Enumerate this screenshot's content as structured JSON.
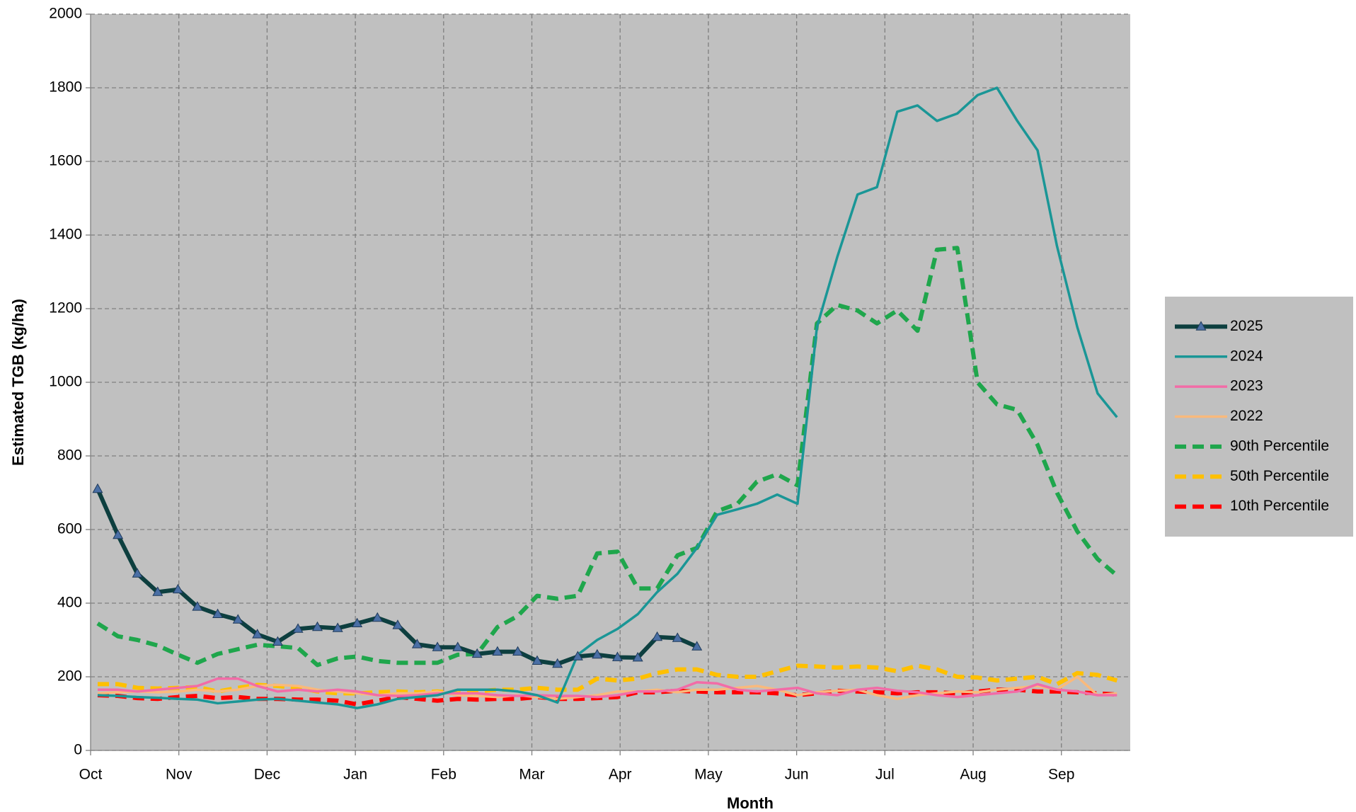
{
  "chart_data": {
    "type": "line",
    "x_label": "Month",
    "y_label": "Estimated TGB (kg/ha)",
    "x": [
      0.08,
      0.31,
      0.53,
      0.76,
      0.99,
      1.21,
      1.44,
      1.67,
      1.89,
      2.12,
      2.35,
      2.57,
      2.8,
      3.02,
      3.25,
      3.48,
      3.7,
      3.93,
      4.16,
      4.38,
      4.61,
      4.84,
      5.06,
      5.29,
      5.52,
      5.74,
      5.97,
      6.2,
      6.42,
      6.65,
      6.87,
      7.1,
      7.33,
      7.55,
      7.78,
      8.01,
      8.23,
      8.46,
      8.69,
      8.91,
      9.14,
      9.37,
      9.59,
      9.82,
      10.05,
      10.27,
      10.5,
      10.73,
      10.95,
      11.18,
      11.41,
      11.63
    ],
    "xlim": [
      0,
      11.78
    ],
    "xticks": [
      {
        "value": 0,
        "label": "Oct"
      },
      {
        "value": 1,
        "label": "Nov"
      },
      {
        "value": 2,
        "label": "Dec"
      },
      {
        "value": 3,
        "label": "Jan"
      },
      {
        "value": 4,
        "label": "Feb"
      },
      {
        "value": 5,
        "label": "Mar"
      },
      {
        "value": 6,
        "label": "Apr"
      },
      {
        "value": 7,
        "label": "May"
      },
      {
        "value": 8,
        "label": "Jun"
      },
      {
        "value": 9,
        "label": "Jul"
      },
      {
        "value": 10,
        "label": "Aug"
      },
      {
        "value": 11,
        "label": "Sep"
      }
    ],
    "ylim": [
      0,
      2000
    ],
    "yticks": [
      0,
      200,
      400,
      600,
      800,
      1000,
      1200,
      1400,
      1600,
      1800,
      2000
    ],
    "grid": true,
    "legend": "right",
    "background": "#c0c0c0",
    "series": [
      {
        "name": "2025",
        "color": "#0d3f3f",
        "style": "solid",
        "marker": "triangle",
        "marker_color": "#4a6fa5",
        "values": [
          710,
          585,
          480,
          430,
          437,
          390,
          370,
          355,
          315,
          295,
          330,
          335,
          332,
          345,
          360,
          340,
          288,
          280,
          280,
          262,
          268,
          268,
          243,
          235,
          255,
          260,
          253,
          252,
          308,
          305,
          282,
          null,
          null,
          null,
          null,
          null,
          null,
          null,
          null,
          null,
          null,
          null,
          null,
          null,
          null,
          null,
          null,
          null,
          null,
          null,
          null,
          null
        ]
      },
      {
        "name": "2024",
        "color": "#1a9696",
        "style": "solid",
        "values": [
          150,
          148,
          145,
          143,
          140,
          138,
          128,
          133,
          138,
          140,
          135,
          130,
          125,
          115,
          125,
          140,
          145,
          150,
          165,
          165,
          165,
          160,
          150,
          130,
          260,
          300,
          330,
          370,
          430,
          480,
          550,
          640,
          655,
          670,
          695,
          670,
          1150,
          1340,
          1510,
          1530,
          1735,
          1752,
          1710,
          1730,
          1780,
          1800,
          1710,
          1630,
          1370,
          1150,
          970,
          905
        ]
      },
      {
        "name": "2023",
        "color": "#f26ca7",
        "style": "solid",
        "values": [
          165,
          165,
          160,
          165,
          170,
          175,
          195,
          195,
          175,
          160,
          165,
          160,
          165,
          160,
          150,
          148,
          150,
          155,
          155,
          155,
          150,
          148,
          150,
          148,
          148,
          145,
          150,
          160,
          160,
          165,
          185,
          182,
          165,
          160,
          165,
          170,
          155,
          150,
          165,
          170,
          162,
          158,
          150,
          145,
          150,
          155,
          160,
          180,
          165,
          160,
          150,
          150
        ]
      },
      {
        "name": "2022",
        "color": "#f9b97c",
        "style": "solid",
        "values": [
          155,
          158,
          160,
          158,
          160,
          165,
          160,
          165,
          175,
          178,
          175,
          165,
          160,
          155,
          150,
          155,
          155,
          160,
          150,
          148,
          145,
          150,
          145,
          140,
          145,
          150,
          160,
          160,
          165,
          158,
          165,
          165,
          170,
          175,
          165,
          150,
          158,
          162,
          165,
          150,
          140,
          150,
          155,
          160,
          158,
          165,
          170,
          175,
          165,
          200,
          150,
          155
        ]
      },
      {
        "name": "90th Percentile",
        "color": "#1fa64c",
        "style": "dashed",
        "values": [
          345,
          310,
          300,
          285,
          260,
          238,
          262,
          275,
          287,
          283,
          278,
          232,
          250,
          255,
          243,
          238,
          238,
          238,
          260,
          262,
          335,
          365,
          420,
          412,
          420,
          535,
          540,
          440,
          440,
          530,
          550,
          650,
          670,
          730,
          750,
          720,
          1160,
          1210,
          1195,
          1160,
          1195,
          1140,
          1360,
          1365,
          1000,
          940,
          925,
          830,
          700,
          595,
          520,
          475
        ]
      },
      {
        "name": "50th Percentile",
        "color": "#ffc000",
        "style": "dashed",
        "values": [
          180,
          180,
          170,
          168,
          170,
          172,
          160,
          170,
          178,
          175,
          170,
          160,
          155,
          155,
          158,
          160,
          158,
          160,
          155,
          160,
          165,
          165,
          170,
          165,
          165,
          195,
          190,
          195,
          210,
          220,
          220,
          205,
          200,
          200,
          215,
          230,
          228,
          225,
          228,
          225,
          215,
          230,
          220,
          200,
          198,
          190,
          195,
          200,
          180,
          210,
          205,
          190
        ]
      },
      {
        "name": "10th Percentile",
        "color": "#ff0000",
        "style": "dashed",
        "values": [
          150,
          148,
          142,
          140,
          145,
          148,
          142,
          145,
          140,
          140,
          138,
          138,
          135,
          125,
          135,
          145,
          140,
          135,
          140,
          138,
          140,
          140,
          145,
          140,
          140,
          142,
          145,
          158,
          158,
          162,
          160,
          158,
          158,
          158,
          155,
          150,
          155,
          162,
          160,
          158,
          155,
          158,
          158,
          155,
          160,
          165,
          165,
          160,
          160,
          158,
          155,
          152
        ]
      }
    ]
  }
}
